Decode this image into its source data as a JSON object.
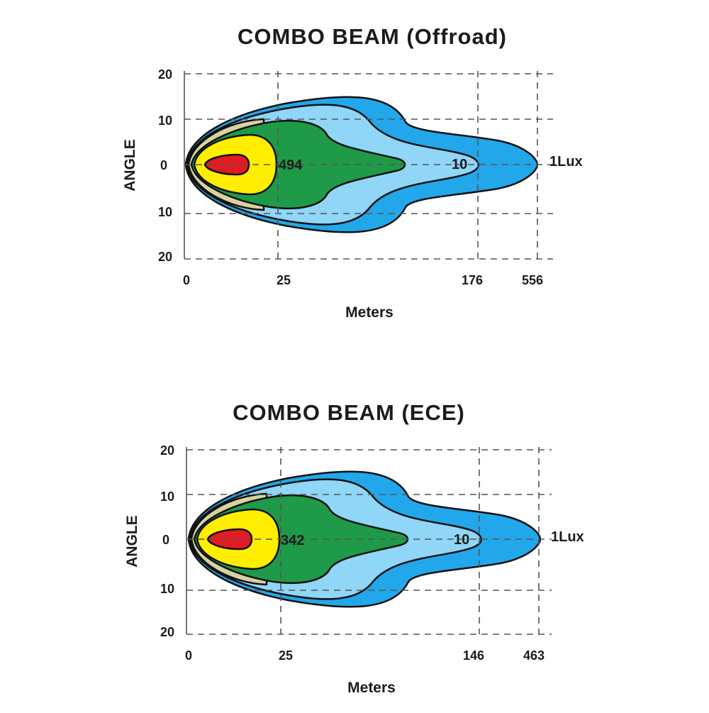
{
  "colors": {
    "deep_blue": "#22a7ea",
    "light_blue": "#8fd6f7",
    "green": "#1f9a48",
    "tan": "#d8d2a2",
    "yellow": "#ffee00",
    "red": "#e21b23",
    "text": "#1b1b1b"
  },
  "chart_data": [
    {
      "type": "beam-pattern",
      "title": "COMBO  BEAM (Offroad)",
      "xlabel": "Meters",
      "ylabel": "ANGLE",
      "y_tick_labels": [
        "20",
        "10",
        "0",
        "10",
        "20"
      ],
      "x_tick_labels": [
        "0",
        "25",
        "176",
        "556"
      ],
      "annotations": {
        "peak_value": "494",
        "mid_value": "10",
        "edge_label": "1Lux"
      },
      "zones": [
        "red",
        "yellow",
        "tan",
        "green",
        "light_blue",
        "deep_blue"
      ]
    },
    {
      "type": "beam-pattern",
      "title": "COMBO  BEAM (ECE)",
      "xlabel": "Meters",
      "ylabel": "ANGLE",
      "y_tick_labels": [
        "20",
        "10",
        "0",
        "10",
        "20"
      ],
      "x_tick_labels": [
        "0",
        "25",
        "146",
        "463"
      ],
      "annotations": {
        "peak_value": "342",
        "mid_value": "10",
        "edge_label": "1Lux"
      },
      "zones": [
        "red",
        "yellow",
        "tan",
        "green",
        "light_blue",
        "deep_blue"
      ]
    }
  ]
}
